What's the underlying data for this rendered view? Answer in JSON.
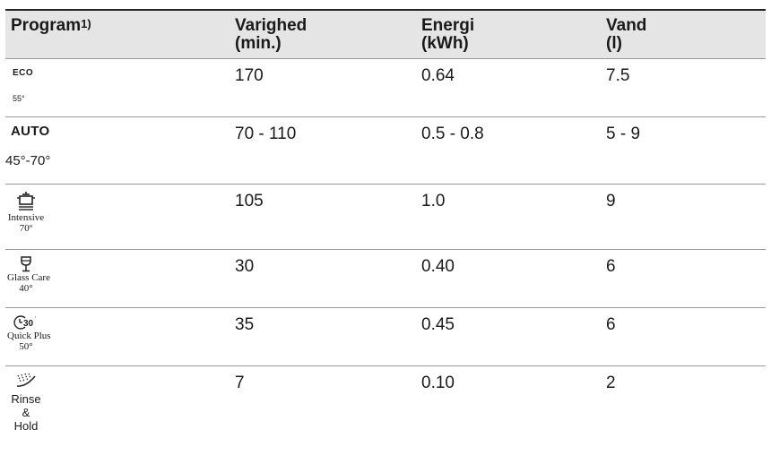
{
  "header": {
    "program": "Program",
    "program_note": "1)",
    "duration": "Varighed",
    "duration_unit": "(min.)",
    "energy": "Energi",
    "energy_unit": "(kWh)",
    "water": "Vand",
    "water_unit": "(l)"
  },
  "rows": [
    {
      "name": "ECO",
      "temp": "55°",
      "icon": "eco-label",
      "duration": "170",
      "energy": "0.64",
      "water": "7.5"
    },
    {
      "name": "AUTO",
      "temp": "45°-70°",
      "icon": "auto-label",
      "duration": "70 - 110",
      "energy": "0.5 - 0.8",
      "water": "5 - 9"
    },
    {
      "name": "Intensive",
      "temp": "70º",
      "icon": "pot-icon",
      "duration": "105",
      "energy": "1.0",
      "water": "9"
    },
    {
      "name": "Glass Care",
      "temp": "40°",
      "icon": "wine-glass-icon",
      "duration": "30",
      "energy": "0.40",
      "water": "6"
    },
    {
      "name": "Quick Plus",
      "temp": "50°",
      "icon": "clock-30-icon",
      "duration": "35",
      "energy": "0.45",
      "water": "6"
    },
    {
      "name": "Rinse &",
      "name2": "Hold",
      "icon": "rinse-spray-icon",
      "duration": "7",
      "energy": "0.10",
      "water": "2"
    }
  ]
}
